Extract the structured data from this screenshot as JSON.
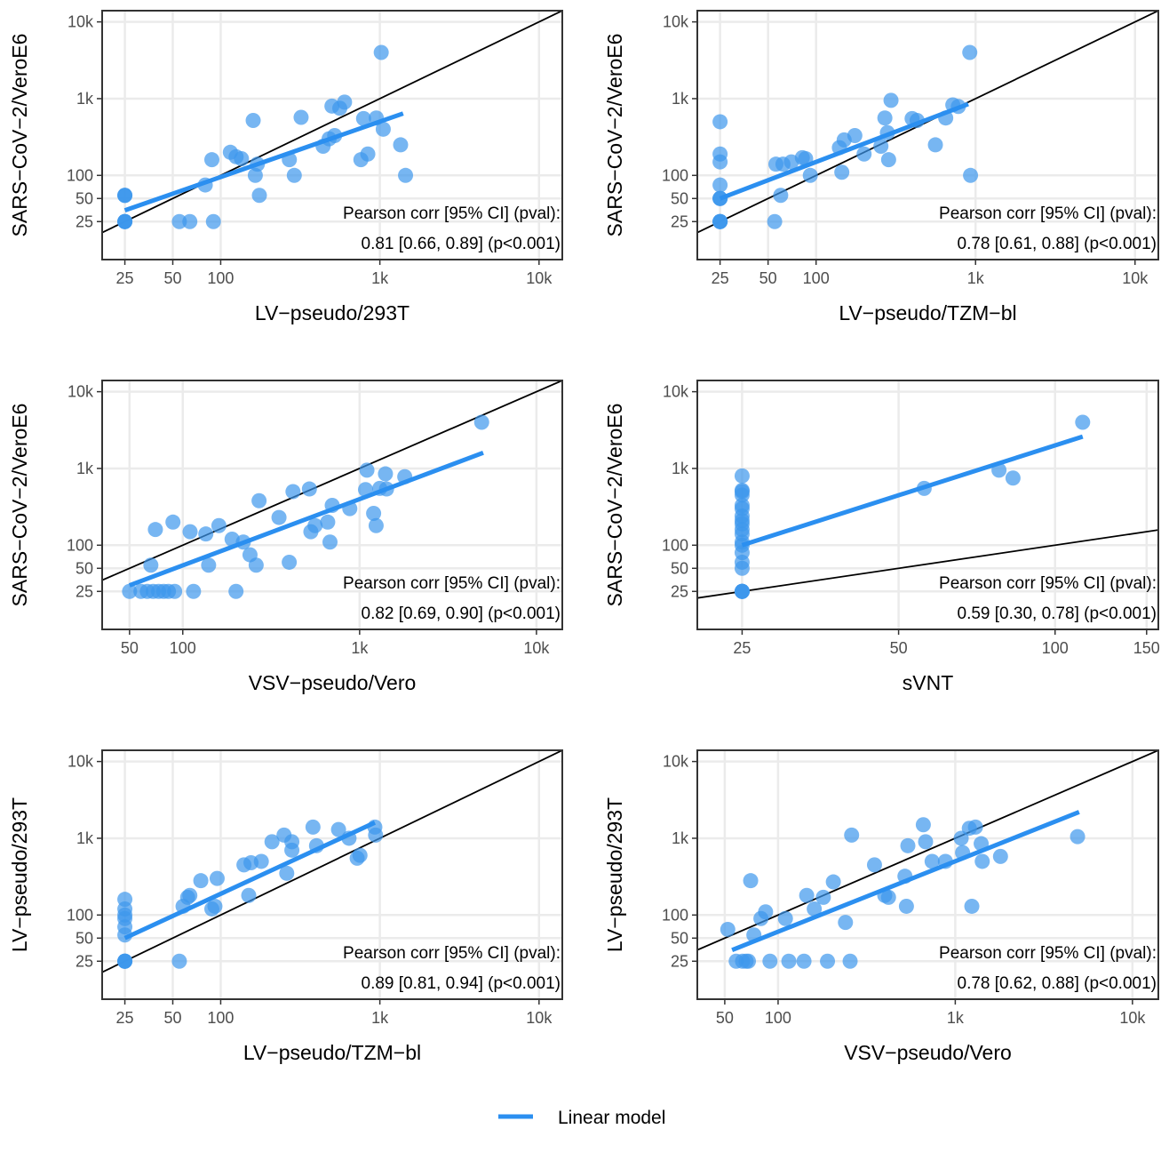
{
  "colors": {
    "points": "#3d97ec",
    "fit": "#2b8ff0",
    "identity": "#000000",
    "grid": "#ebebeb",
    "panel_border": "#333333"
  },
  "legend": {
    "label": "Linear model",
    "placement": "bottom-center"
  },
  "chart_data": [
    {
      "type": "scatter",
      "xlabel": "LV−pseudo/293T",
      "ylabel": "SARS−CoV−2/VeroE6",
      "x_scale": "log",
      "y_scale": "log",
      "xlim": [
        18,
        14000
      ],
      "ylim": [
        8,
        14000
      ],
      "x_ticks": [
        25,
        50,
        100,
        1000,
        10000
      ],
      "x_tick_labels": [
        "25",
        "50",
        "100",
        "1k",
        "10k"
      ],
      "y_ticks": [
        25,
        50,
        100,
        1000,
        10000
      ],
      "y_tick_labels": [
        "25",
        "50",
        "100",
        "1k",
        "10k"
      ],
      "grid": true,
      "annotation": [
        "Pearson corr [95% CI] (pval):",
        "0.81 [0.66, 0.89] (p<0.001)"
      ],
      "fit_line": [
        [
          25,
          35
        ],
        [
          1400,
          640
        ]
      ],
      "points": [
        [
          25,
          25
        ],
        [
          25,
          25
        ],
        [
          25,
          25
        ],
        [
          25,
          25
        ],
        [
          25,
          55
        ],
        [
          25,
          55
        ],
        [
          25,
          55
        ],
        [
          55,
          25
        ],
        [
          64,
          25
        ],
        [
          90,
          25
        ],
        [
          80,
          75
        ],
        [
          88,
          160
        ],
        [
          115,
          200
        ],
        [
          125,
          175
        ],
        [
          135,
          165
        ],
        [
          160,
          520
        ],
        [
          165,
          100
        ],
        [
          170,
          140
        ],
        [
          175,
          55
        ],
        [
          270,
          160
        ],
        [
          290,
          100
        ],
        [
          320,
          570
        ],
        [
          440,
          240
        ],
        [
          480,
          300
        ],
        [
          500,
          800
        ],
        [
          520,
          330
        ],
        [
          560,
          750
        ],
        [
          600,
          900
        ],
        [
          760,
          160
        ],
        [
          790,
          550
        ],
        [
          840,
          190
        ],
        [
          950,
          560
        ],
        [
          1020,
          4000
        ],
        [
          1050,
          400
        ],
        [
          1350,
          250
        ],
        [
          1450,
          100
        ]
      ]
    },
    {
      "type": "scatter",
      "xlabel": "LV−pseudo/TZM−bl",
      "ylabel": "SARS−CoV−2/VeroE6",
      "x_scale": "log",
      "y_scale": "log",
      "xlim": [
        18,
        14000
      ],
      "ylim": [
        8,
        14000
      ],
      "x_ticks": [
        25,
        50,
        100,
        1000,
        10000
      ],
      "x_tick_labels": [
        "25",
        "50",
        "100",
        "1k",
        "10k"
      ],
      "y_ticks": [
        25,
        50,
        100,
        1000,
        10000
      ],
      "y_tick_labels": [
        "25",
        "50",
        "100",
        "1k",
        "10k"
      ],
      "grid": true,
      "annotation": [
        "Pearson corr [95% CI] (pval):",
        "0.78 [0.61, 0.88] (p<0.001)"
      ],
      "fit_line": [
        [
          25,
          50
        ],
        [
          900,
          850
        ]
      ],
      "points": [
        [
          25,
          25
        ],
        [
          25,
          25
        ],
        [
          25,
          25
        ],
        [
          25,
          25
        ],
        [
          25,
          50
        ],
        [
          25,
          50
        ],
        [
          25,
          50
        ],
        [
          25,
          75
        ],
        [
          25,
          150
        ],
        [
          25,
          190
        ],
        [
          25,
          500
        ],
        [
          55,
          25
        ],
        [
          56,
          140
        ],
        [
          60,
          55
        ],
        [
          62,
          140
        ],
        [
          70,
          150
        ],
        [
          82,
          170
        ],
        [
          86,
          165
        ],
        [
          92,
          100
        ],
        [
          140,
          230
        ],
        [
          145,
          110
        ],
        [
          150,
          290
        ],
        [
          175,
          330
        ],
        [
          200,
          190
        ],
        [
          255,
          240
        ],
        [
          270,
          560
        ],
        [
          280,
          360
        ],
        [
          285,
          160
        ],
        [
          295,
          950
        ],
        [
          400,
          550
        ],
        [
          430,
          520
        ],
        [
          560,
          250
        ],
        [
          650,
          560
        ],
        [
          720,
          830
        ],
        [
          780,
          790
        ],
        [
          920,
          4000
        ],
        [
          930,
          100
        ]
      ]
    },
    {
      "type": "scatter",
      "xlabel": "VSV−pseudo/Vero",
      "ylabel": "SARS−CoV−2/VeroE6",
      "x_scale": "log",
      "y_scale": "log",
      "xlim": [
        35,
        14000
      ],
      "ylim": [
        8,
        14000
      ],
      "x_ticks": [
        50,
        100,
        1000,
        10000
      ],
      "x_tick_labels": [
        "50",
        "100",
        "1k",
        "10k"
      ],
      "y_ticks": [
        25,
        50,
        100,
        1000,
        10000
      ],
      "y_tick_labels": [
        "25",
        "50",
        "100",
        "1k",
        "10k"
      ],
      "grid": true,
      "annotation": [
        "Pearson corr [95% CI] (pval):",
        "0.82 [0.69, 0.90] (p<0.001)"
      ],
      "fit_line": [
        [
          50,
          30
        ],
        [
          5000,
          1600
        ]
      ],
      "points": [
        [
          50,
          25
        ],
        [
          58,
          25
        ],
        [
          63,
          25
        ],
        [
          66,
          55
        ],
        [
          68,
          25
        ],
        [
          70,
          160
        ],
        [
          73,
          25
        ],
        [
          78,
          25
        ],
        [
          83,
          25
        ],
        [
          88,
          200
        ],
        [
          90,
          25
        ],
        [
          110,
          150
        ],
        [
          115,
          25
        ],
        [
          135,
          140
        ],
        [
          140,
          55
        ],
        [
          160,
          180
        ],
        [
          190,
          120
        ],
        [
          200,
          25
        ],
        [
          220,
          110
        ],
        [
          240,
          75
        ],
        [
          260,
          55
        ],
        [
          270,
          380
        ],
        [
          350,
          230
        ],
        [
          400,
          60
        ],
        [
          420,
          500
        ],
        [
          520,
          540
        ],
        [
          530,
          150
        ],
        [
          560,
          180
        ],
        [
          660,
          200
        ],
        [
          680,
          110
        ],
        [
          700,
          330
        ],
        [
          880,
          300
        ],
        [
          1080,
          530
        ],
        [
          1100,
          950
        ],
        [
          1200,
          260
        ],
        [
          1240,
          180
        ],
        [
          1300,
          550
        ],
        [
          1400,
          850
        ],
        [
          1420,
          540
        ],
        [
          1800,
          780
        ],
        [
          4900,
          4000
        ]
      ]
    },
    {
      "type": "scatter",
      "xlabel": "sVNT",
      "ylabel": "SARS−CoV−2/VeroE6",
      "x_scale": "log",
      "y_scale": "log",
      "xlim": [
        20.5,
        158
      ],
      "ylim": [
        8,
        14000
      ],
      "x_ticks": [
        25,
        50,
        100,
        150
      ],
      "x_tick_labels": [
        "25",
        "50",
        "100",
        "150"
      ],
      "y_ticks": [
        25,
        50,
        100,
        1000,
        10000
      ],
      "y_tick_labels": [
        "25",
        "50",
        "100",
        "1k",
        "10k"
      ],
      "grid": true,
      "annotation": [
        "Pearson corr [95% CI] (pval):",
        "0.59 [0.30, 0.78] (p<0.001)"
      ],
      "fit_line": [
        [
          25,
          100
        ],
        [
          113,
          2600
        ]
      ],
      "points": [
        [
          25,
          25
        ],
        [
          25,
          25
        ],
        [
          25,
          25
        ],
        [
          25,
          25
        ],
        [
          25,
          25
        ],
        [
          25,
          50
        ],
        [
          25,
          60
        ],
        [
          25,
          80
        ],
        [
          25,
          100
        ],
        [
          25,
          110
        ],
        [
          25,
          140
        ],
        [
          25,
          160
        ],
        [
          25,
          190
        ],
        [
          25,
          210
        ],
        [
          25,
          240
        ],
        [
          25,
          300
        ],
        [
          25,
          330
        ],
        [
          25,
          450
        ],
        [
          25,
          500
        ],
        [
          25,
          520
        ],
        [
          25,
          800
        ],
        [
          56,
          550
        ],
        [
          78,
          950
        ],
        [
          83,
          750
        ],
        [
          113,
          4000
        ]
      ]
    },
    {
      "type": "scatter",
      "xlabel": "LV−pseudo/TZM−bl",
      "ylabel": "LV−pseudo/293T",
      "x_scale": "log",
      "y_scale": "log",
      "xlim": [
        18,
        14000
      ],
      "ylim": [
        8,
        14000
      ],
      "x_ticks": [
        25,
        50,
        100,
        1000,
        10000
      ],
      "x_tick_labels": [
        "25",
        "50",
        "100",
        "1k",
        "10k"
      ],
      "y_ticks": [
        25,
        50,
        100,
        1000,
        10000
      ],
      "y_tick_labels": [
        "25",
        "50",
        "100",
        "1k",
        "10k"
      ],
      "grid": true,
      "annotation": [
        "Pearson corr [95% CI] (pval):",
        "0.89 [0.81, 0.94] (p<0.001)"
      ],
      "fit_line": [
        [
          25,
          50
        ],
        [
          930,
          1600
        ]
      ],
      "points": [
        [
          25,
          25
        ],
        [
          25,
          25
        ],
        [
          25,
          25
        ],
        [
          25,
          25
        ],
        [
          25,
          55
        ],
        [
          25,
          70
        ],
        [
          25,
          90
        ],
        [
          25,
          100
        ],
        [
          25,
          120
        ],
        [
          25,
          160
        ],
        [
          55,
          25
        ],
        [
          58,
          130
        ],
        [
          62,
          170
        ],
        [
          64,
          180
        ],
        [
          75,
          280
        ],
        [
          88,
          120
        ],
        [
          92,
          130
        ],
        [
          95,
          300
        ],
        [
          140,
          450
        ],
        [
          150,
          180
        ],
        [
          155,
          480
        ],
        [
          180,
          500
        ],
        [
          210,
          900
        ],
        [
          250,
          1100
        ],
        [
          260,
          350
        ],
        [
          280,
          700
        ],
        [
          280,
          900
        ],
        [
          380,
          1400
        ],
        [
          400,
          800
        ],
        [
          550,
          1300
        ],
        [
          640,
          1000
        ],
        [
          720,
          550
        ],
        [
          750,
          600
        ],
        [
          930,
          1400
        ],
        [
          940,
          1100
        ]
      ]
    },
    {
      "type": "scatter",
      "xlabel": "VSV−pseudo/Vero",
      "ylabel": "LV−pseudo/293T",
      "x_scale": "log",
      "y_scale": "log",
      "xlim": [
        35,
        14000
      ],
      "ylim": [
        8,
        14000
      ],
      "x_ticks": [
        50,
        100,
        1000,
        10000
      ],
      "x_tick_labels": [
        "50",
        "100",
        "1k",
        "10k"
      ],
      "y_ticks": [
        25,
        50,
        100,
        1000,
        10000
      ],
      "y_tick_labels": [
        "25",
        "50",
        "100",
        "1k",
        "10k"
      ],
      "grid": true,
      "annotation": [
        "Pearson corr [95% CI] (pval):",
        "0.78 [0.62, 0.88] (p<0.001)"
      ],
      "fit_line": [
        [
          55,
          35
        ],
        [
          5000,
          2200
        ]
      ],
      "points": [
        [
          52,
          65
        ],
        [
          58,
          25
        ],
        [
          63,
          25
        ],
        [
          66,
          25
        ],
        [
          68,
          25
        ],
        [
          70,
          280
        ],
        [
          73,
          55
        ],
        [
          80,
          90
        ],
        [
          85,
          110
        ],
        [
          90,
          25
        ],
        [
          110,
          90
        ],
        [
          115,
          25
        ],
        [
          140,
          25
        ],
        [
          145,
          180
        ],
        [
          160,
          120
        ],
        [
          180,
          170
        ],
        [
          190,
          25
        ],
        [
          205,
          270
        ],
        [
          240,
          80
        ],
        [
          255,
          25
        ],
        [
          260,
          1100
        ],
        [
          350,
          450
        ],
        [
          400,
          180
        ],
        [
          420,
          170
        ],
        [
          520,
          320
        ],
        [
          530,
          130
        ],
        [
          540,
          800
        ],
        [
          660,
          1500
        ],
        [
          680,
          900
        ],
        [
          740,
          500
        ],
        [
          880,
          500
        ],
        [
          1080,
          1000
        ],
        [
          1100,
          650
        ],
        [
          1200,
          1350
        ],
        [
          1240,
          130
        ],
        [
          1300,
          1400
        ],
        [
          1400,
          850
        ],
        [
          1420,
          500
        ],
        [
          1800,
          580
        ],
        [
          4900,
          1050
        ]
      ]
    }
  ]
}
